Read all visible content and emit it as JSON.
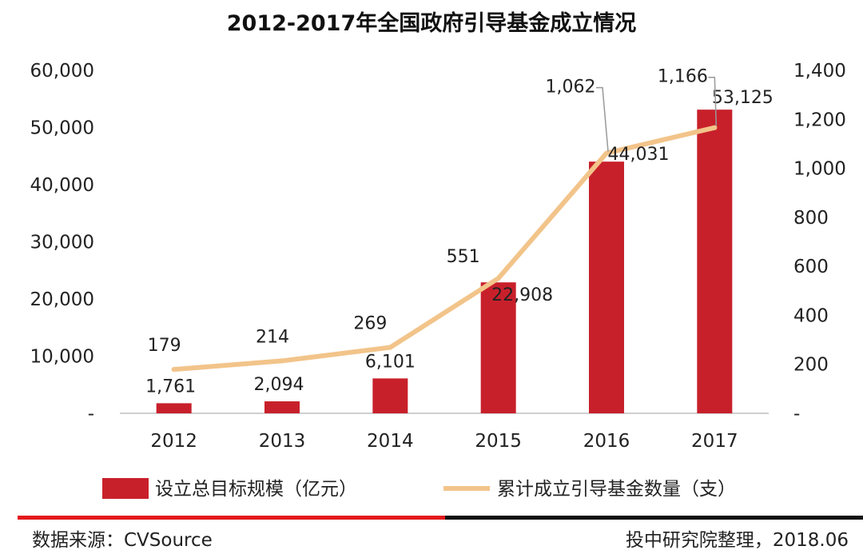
{
  "chart_data": {
    "type": "bar+line",
    "title": "2012-2017年全国政府引导基金成立情况",
    "categories": [
      "2012",
      "2013",
      "2014",
      "2015",
      "2016",
      "2017"
    ],
    "series": [
      {
        "name": "设立总目标规模（亿元）",
        "type": "bar",
        "axis": "left",
        "values": [
          1761,
          2094,
          6101,
          22908,
          44031,
          53125
        ],
        "labels": [
          "1,761",
          "2,094",
          "6,101",
          "22,908",
          "44,031",
          "53,125"
        ],
        "color": "#C8202B"
      },
      {
        "name": "累计成立引导基金数量（支）",
        "type": "line",
        "axis": "right",
        "values": [
          179,
          214,
          269,
          551,
          1062,
          1166
        ],
        "labels": [
          "179",
          "214",
          "269",
          "551",
          "1,062",
          "1,166"
        ],
        "color": "#F2C48A"
      }
    ],
    "left_axis": {
      "ylim": [
        0,
        60000
      ],
      "tick_labels": [
        "-",
        "10,000",
        "20,000",
        "30,000",
        "40,000",
        "50,000",
        "60,000"
      ]
    },
    "right_axis": {
      "ylim": [
        0,
        1400
      ],
      "tick_labels": [
        "-",
        "200",
        "400",
        "600",
        "800",
        "1,000",
        "1,200",
        "1,400"
      ]
    },
    "grid": false,
    "legend": "bottom"
  },
  "footer": {
    "source": "数据来源：CVSource",
    "credit": "投中研究院整理，2018.06"
  },
  "colors": {
    "accent_red": "#E2191C",
    "rule_black": "#111111"
  }
}
